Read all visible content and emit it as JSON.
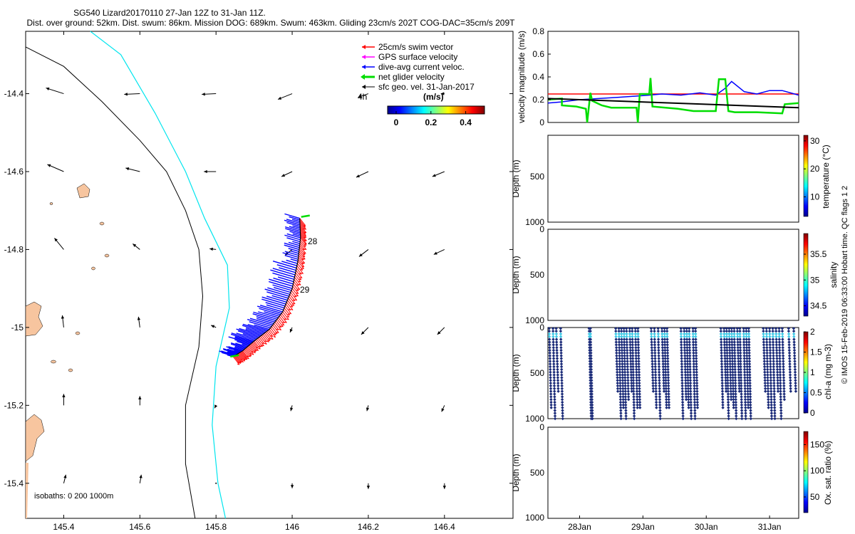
{
  "header": {
    "title_line1": "SG540 Lizard20170110 27-Jan 12Z to 31-Jan 11Z.",
    "title_line2": "Dist. over ground: 52km. Dist. swum: 86km. Mission DOG: 689km. Swum: 463km. Gliding 23cm/s 202T COG-DAC=35cm/s 209T"
  },
  "footer": {
    "credit": "© IMOS 15-Feb-2019 06:33:00 Hobart time. QC flags 1  2"
  },
  "colors": {
    "swim": "#ff0000",
    "gps": "#ff00ff",
    "dac": "#0000ff",
    "net": "#00dd00",
    "geo": "#000000",
    "coast": "#00e5ee",
    "isobath": "#000000",
    "land": "#f7c59f",
    "cast": "#1a2a78"
  },
  "chart_data": [
    {
      "type": "map",
      "name": "glider track map",
      "xlim": [
        145.3,
        146.58
      ],
      "ylim": [
        -15.49,
        -14.24
      ],
      "x_ticks": [
        145.4,
        145.6,
        145.8,
        146,
        146.2,
        146.4
      ],
      "x_tick_labels": [
        "145.4",
        "145.6",
        "145.8",
        "146",
        "146.2",
        "146.4"
      ],
      "y_ticks": [
        -14.4,
        -14.6,
        -14.8,
        -15,
        -15.2,
        -15.4
      ],
      "y_tick_labels": [
        "-14.4",
        "-14.6",
        "-14.8",
        "-15",
        "-15.2",
        "-15.4"
      ],
      "legend": {
        "entries": [
          {
            "label": "25cm/s swim vector",
            "color_key": "swim"
          },
          {
            "label": "GPS surface velocity",
            "color_key": "gps"
          },
          {
            "label": "dive-avg current veloc.",
            "color_key": "dac"
          },
          {
            "label": "net glider velocity",
            "color_key": "net"
          },
          {
            "label": "sfc geo. vel. 31-Jan-2017",
            "color_key": "geo"
          }
        ],
        "scale_label": "4h",
        "colorbar_title": "(m/s)",
        "colorbar_ticks": [
          0,
          0.2,
          0.4
        ],
        "colorbar_tick_labels": [
          "0",
          "0.2",
          "0.4"
        ],
        "placement": "top-right"
      },
      "isobaths_label": "isobaths: 0   200  1000m",
      "day_labels": [
        {
          "text": "28",
          "lon": 146.045,
          "lat": -14.797
        },
        {
          "text": "29",
          "lon": 146.025,
          "lat": -14.918
        }
      ],
      "track": [
        {
          "lon": 145.845,
          "lat": -15.075
        },
        {
          "lon": 145.87,
          "lat": -15.06
        },
        {
          "lon": 145.9,
          "lat": -15.035
        },
        {
          "lon": 145.94,
          "lat": -15.005
        },
        {
          "lon": 145.975,
          "lat": -14.96
        },
        {
          "lon": 146.0,
          "lat": -14.9
        },
        {
          "lon": 146.015,
          "lat": -14.83
        },
        {
          "lon": 146.022,
          "lat": -14.77
        },
        {
          "lon": 146.02,
          "lat": -14.72
        }
      ],
      "current_vectors": [
        {
          "lon": 145.4,
          "lat": -14.4,
          "u": -0.25,
          "v": 0.08
        },
        {
          "lon": 145.6,
          "lat": -14.4,
          "u": -0.22,
          "v": -0.01
        },
        {
          "lon": 145.8,
          "lat": -14.4,
          "u": -0.2,
          "v": -0.01
        },
        {
          "lon": 146.0,
          "lat": -14.4,
          "u": -0.2,
          "v": -0.08
        },
        {
          "lon": 146.2,
          "lat": -14.4,
          "u": -0.14,
          "v": -0.05
        },
        {
          "lon": 146.4,
          "lat": -14.4,
          "u": -0.05,
          "v": 0.0
        },
        {
          "lon": 145.4,
          "lat": -14.6,
          "u": -0.23,
          "v": 0.1
        },
        {
          "lon": 145.6,
          "lat": -14.6,
          "u": -0.2,
          "v": 0.05
        },
        {
          "lon": 145.8,
          "lat": -14.6,
          "u": -0.17,
          "v": 0.0
        },
        {
          "lon": 146.0,
          "lat": -14.6,
          "u": -0.15,
          "v": -0.07
        },
        {
          "lon": 146.2,
          "lat": -14.6,
          "u": -0.17,
          "v": -0.08
        },
        {
          "lon": 146.4,
          "lat": -14.6,
          "u": -0.17,
          "v": -0.07
        },
        {
          "lon": 145.4,
          "lat": -14.8,
          "u": -0.13,
          "v": 0.16
        },
        {
          "lon": 145.6,
          "lat": -14.8,
          "u": -0.1,
          "v": 0.08
        },
        {
          "lon": 145.8,
          "lat": -14.8,
          "u": -0.09,
          "v": 0.01
        },
        {
          "lon": 146.0,
          "lat": -14.8,
          "u": -0.1,
          "v": -0.08
        },
        {
          "lon": 146.2,
          "lat": -14.8,
          "u": -0.13,
          "v": -0.1
        },
        {
          "lon": 146.4,
          "lat": -14.8,
          "u": -0.15,
          "v": -0.07
        },
        {
          "lon": 145.4,
          "lat": -15.0,
          "u": -0.02,
          "v": 0.17
        },
        {
          "lon": 145.6,
          "lat": -15.0,
          "u": -0.02,
          "v": 0.15
        },
        {
          "lon": 145.8,
          "lat": -15.0,
          "u": -0.07,
          "v": 0.03
        },
        {
          "lon": 146.0,
          "lat": -15.0,
          "u": -0.03,
          "v": -0.07
        },
        {
          "lon": 146.2,
          "lat": -15.0,
          "u": -0.1,
          "v": -0.1
        },
        {
          "lon": 146.4,
          "lat": -15.0,
          "u": -0.1,
          "v": -0.1
        },
        {
          "lon": 145.4,
          "lat": -15.2,
          "u": 0.0,
          "v": 0.16
        },
        {
          "lon": 145.6,
          "lat": -15.2,
          "u": 0.0,
          "v": 0.13
        },
        {
          "lon": 145.8,
          "lat": -15.2,
          "u": -0.02,
          "v": -0.04
        },
        {
          "lon": 146.0,
          "lat": -15.2,
          "u": -0.02,
          "v": -0.08
        },
        {
          "lon": 146.2,
          "lat": -15.2,
          "u": -0.02,
          "v": -0.08
        },
        {
          "lon": 146.4,
          "lat": -15.2,
          "u": -0.04,
          "v": -0.09
        },
        {
          "lon": 145.4,
          "lat": -15.4,
          "u": 0.03,
          "v": 0.12
        },
        {
          "lon": 145.6,
          "lat": -15.4,
          "u": 0.02,
          "v": 0.12
        },
        {
          "lon": 145.8,
          "lat": -15.4,
          "u": 0.0,
          "v": 0.0
        },
        {
          "lon": 146.0,
          "lat": -15.4,
          "u": 0.0,
          "v": -0.07
        },
        {
          "lon": 146.2,
          "lat": -15.4,
          "u": 0.0,
          "v": -0.08
        },
        {
          "lon": 146.4,
          "lat": -15.4,
          "u": 0.0,
          "v": -0.08
        }
      ],
      "coastline": [
        {
          "lon": 145.3,
          "lat": -14.28
        },
        {
          "lon": 145.4,
          "lat": -14.33
        },
        {
          "lon": 145.5,
          "lat": -14.42
        },
        {
          "lon": 145.6,
          "lat": -14.52
        },
        {
          "lon": 145.67,
          "lat": -14.6
        },
        {
          "lon": 145.72,
          "lat": -14.7
        },
        {
          "lon": 145.755,
          "lat": -14.8
        },
        {
          "lon": 145.765,
          "lat": -14.92
        },
        {
          "lon": 145.755,
          "lat": -15.05
        },
        {
          "lon": 145.72,
          "lat": -15.2
        },
        {
          "lon": 145.72,
          "lat": -15.35
        },
        {
          "lon": 145.745,
          "lat": -15.49
        }
      ],
      "isobath_200": [
        {
          "lon": 145.47,
          "lat": -14.24
        },
        {
          "lon": 145.55,
          "lat": -14.3
        },
        {
          "lon": 145.64,
          "lat": -14.45
        },
        {
          "lon": 145.72,
          "lat": -14.6
        },
        {
          "lon": 145.77,
          "lat": -14.72
        },
        {
          "lon": 145.83,
          "lat": -14.84
        },
        {
          "lon": 145.835,
          "lat": -14.95
        },
        {
          "lon": 145.8,
          "lat": -15.1
        },
        {
          "lon": 145.79,
          "lat": -15.25
        },
        {
          "lon": 145.805,
          "lat": -15.4
        },
        {
          "lon": 145.825,
          "lat": -15.49
        }
      ]
    },
    {
      "type": "line",
      "name": "velocity magnitude",
      "ylabel": "velocity magnitude (m/s)",
      "ylim": [
        0,
        0.8
      ],
      "y_ticks": [
        0,
        0.2,
        0.4,
        0.6,
        0.8
      ],
      "y_tick_labels": [
        "0",
        "0.2",
        "0.4",
        "0.6",
        "0.8"
      ],
      "xlim": [
        27.5,
        31.46
      ],
      "series": [
        {
          "name": "swim",
          "color_key": "swim",
          "x": [
            27.5,
            31.46
          ],
          "y": [
            0.25,
            0.25
          ]
        },
        {
          "name": "dac",
          "color_key": "dac",
          "x": [
            27.5,
            27.7,
            28.0,
            28.3,
            28.6,
            29.1,
            29.3,
            29.6,
            29.9,
            30.15,
            30.3,
            30.4,
            30.6,
            30.8,
            31.0,
            31.2,
            31.46
          ],
          "y": [
            0.17,
            0.18,
            0.2,
            0.21,
            0.22,
            0.24,
            0.25,
            0.24,
            0.26,
            0.24,
            0.3,
            0.36,
            0.27,
            0.25,
            0.28,
            0.28,
            0.24
          ]
        },
        {
          "name": "net",
          "color_key": "net",
          "x": [
            27.5,
            27.72,
            27.72,
            27.95,
            28.1,
            28.12,
            28.17,
            28.2,
            28.35,
            28.5,
            28.8,
            28.9,
            28.92,
            28.95,
            29.1,
            29.12,
            29.15,
            29.55,
            29.8,
            30.15,
            30.2,
            30.3,
            30.35,
            30.45,
            30.5,
            30.8,
            31.2,
            31.24,
            31.46
          ],
          "y": [
            0.2,
            0.21,
            0.15,
            0.14,
            0.12,
            0.0,
            0.26,
            0.19,
            0.15,
            0.13,
            0.13,
            0.13,
            0.0,
            0.25,
            0.25,
            0.39,
            0.14,
            0.12,
            0.1,
            0.1,
            0.38,
            0.38,
            0.1,
            0.09,
            0.09,
            0.09,
            0.08,
            0.16,
            0.17
          ]
        },
        {
          "name": "geo",
          "color_key": "geo",
          "x": [
            27.5,
            31.46
          ],
          "y": [
            0.21,
            0.13
          ]
        }
      ]
    },
    {
      "type": "scatter",
      "name": "temperature section",
      "ylabel": "Depth (m)",
      "ylim": [
        1000,
        0
      ],
      "y_ticks": [
        500,
        1000
      ],
      "y_tick_labels": [
        "500",
        "1000"
      ],
      "colorbar_label": "temperature (°C)",
      "colorbar_ticks": [
        10,
        20,
        30
      ],
      "colorbar_tick_labels": [
        "10",
        "20",
        "30"
      ],
      "colorbar_range": [
        3,
        32
      ]
    },
    {
      "type": "scatter",
      "name": "salinity section",
      "ylabel": "Depth (m)",
      "y_tick_labels_top": "0",
      "ylim": [
        1000,
        0
      ],
      "y_ticks": [
        500,
        1000
      ],
      "y_tick_labels": [
        "500",
        "1000"
      ],
      "colorbar_label": "salinity",
      "colorbar_ticks": [
        34.5,
        35,
        35.5
      ],
      "colorbar_tick_labels": [
        "34.5",
        "35",
        "35.5"
      ],
      "colorbar_range": [
        34.3,
        35.9
      ]
    },
    {
      "type": "scatter",
      "name": "chlorophyll section",
      "ylabel": "Depth (m)",
      "ylim": [
        1000,
        0
      ],
      "y_ticks": [
        0,
        500,
        1000
      ],
      "y_tick_labels": [
        "0",
        "500",
        "1000"
      ],
      "colorbar_label": "chl-a (mg m-3)",
      "colorbar_ticks": [
        0,
        0.5,
        1,
        1.5,
        2
      ],
      "colorbar_tick_labels": [
        "0",
        "0.5",
        "1",
        "1.5",
        "2"
      ],
      "colorbar_range": [
        0,
        2
      ],
      "cast_times": [
        27.52,
        27.58,
        27.63,
        27.7,
        28.15,
        28.17,
        28.57,
        28.62,
        28.66,
        28.7,
        28.74,
        28.79,
        28.83,
        28.88,
        28.92,
        29.13,
        29.18,
        29.24,
        29.3,
        29.34,
        29.38,
        29.6,
        29.65,
        29.69,
        29.73,
        29.79,
        29.83,
        30.23,
        30.28,
        30.32,
        30.36,
        30.4,
        30.44,
        30.49,
        30.53,
        30.59,
        30.63,
        30.67,
        30.9,
        30.95,
        31.0,
        31.05,
        31.1,
        31.15,
        31.2,
        31.3,
        31.38
      ],
      "cast_max_depths": [
        900,
        1000,
        700,
        1000,
        1000,
        1000,
        700,
        1000,
        900,
        1000,
        800,
        700,
        1000,
        900,
        900,
        700,
        900,
        1000,
        700,
        900,
        900,
        1000,
        800,
        900,
        1000,
        1000,
        900,
        900,
        700,
        1000,
        800,
        900,
        1000,
        700,
        1000,
        1000,
        900,
        1000,
        700,
        900,
        1000,
        1000,
        700,
        1000,
        800,
        700,
        700
      ]
    },
    {
      "type": "scatter",
      "name": "oxygen saturation section",
      "ylabel": "Depth (m)",
      "ylim": [
        1000,
        0
      ],
      "y_ticks": [
        0,
        500,
        1000
      ],
      "y_tick_labels": [
        "0",
        "500",
        "1000"
      ],
      "x_ticks": [
        28,
        29,
        30,
        31
      ],
      "x_tick_labels": [
        "28Jan",
        "29Jan",
        "30Jan",
        "31Jan"
      ],
      "colorbar_label": "Ox. sat. ratio (%)",
      "colorbar_ticks": [
        50,
        100,
        150
      ],
      "colorbar_tick_labels": [
        "50",
        "100",
        "150"
      ],
      "colorbar_range": [
        20,
        175
      ]
    }
  ]
}
